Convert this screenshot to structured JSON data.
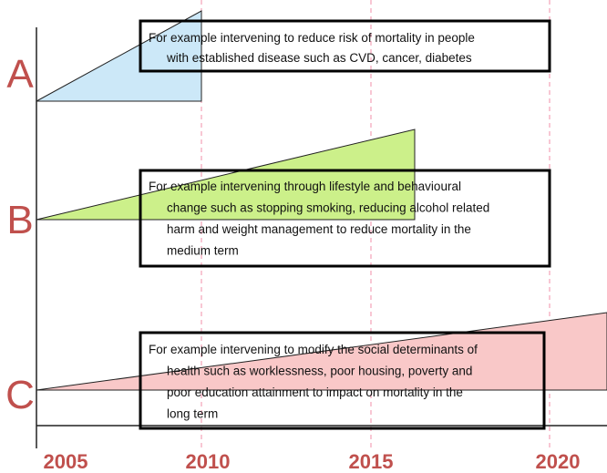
{
  "rows": [
    {
      "label": "A",
      "text": [
        "For example intervening to reduce risk of mortality in people",
        "with established disease such as CVD, cancer, diabetes"
      ]
    },
    {
      "label": "B",
      "text": [
        "For example intervening through lifestyle and behavioural",
        "change such as stopping smoking, reducing alcohol related",
        "harm and weight management to reduce mortality in the",
        "medium term"
      ]
    },
    {
      "label": "C",
      "text": [
        "For example intervening to modify the social determinants of",
        "health such as worklessness, poor housing, poverty and",
        "poor education attainment to impact on mortality in the",
        "long term"
      ]
    }
  ],
  "years": [
    "2005",
    "2010",
    "2015",
    "2020"
  ]
}
